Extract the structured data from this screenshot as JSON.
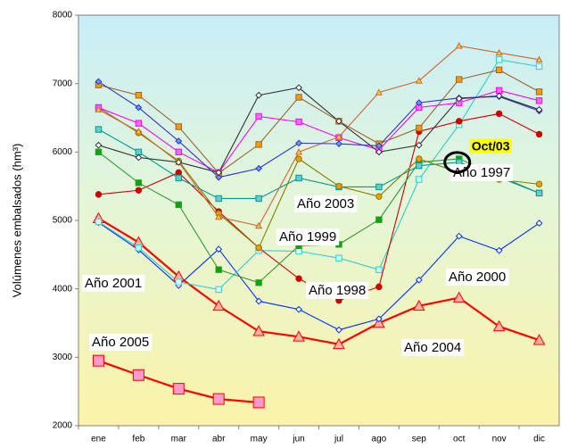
{
  "chart_data": {
    "type": "line",
    "y_label": "Volúmenes embalsados (hm³)",
    "categories": [
      "ene",
      "feb",
      "mar",
      "abr",
      "may",
      "jun",
      "jul",
      "ago",
      "sep",
      "oct",
      "nov",
      "dic"
    ],
    "ylim": [
      2000,
      8000
    ],
    "yticks": [
      2000,
      3000,
      4000,
      5000,
      6000,
      7000,
      8000
    ],
    "highlight": "Oct/03",
    "series": [
      {
        "name": "Año 2005",
        "color": "#ff0000",
        "marker": "square",
        "marker_fill": "#ff99cc",
        "values": [
          2950,
          2740,
          2540,
          2390,
          2340,
          null,
          null,
          null,
          null,
          null,
          null,
          null
        ]
      },
      {
        "name": "Año 2004",
        "color": "#ff0000",
        "marker": "triangle",
        "marker_fill": "#ffb0a0",
        "values": [
          5030,
          4680,
          4180,
          3750,
          3380,
          3300,
          3190,
          3500,
          3750,
          3870,
          3450,
          3250
        ]
      },
      {
        "name": "Año 2000",
        "color": "#0033ff",
        "marker": "diamond",
        "marker_fill": "#ffffff",
        "values": [
          4970,
          4570,
          4050,
          4580,
          3820,
          3700,
          3400,
          3560,
          4130,
          4770,
          4560,
          4960
        ]
      },
      {
        "name": "Año 2001",
        "color": "#33cccc",
        "marker": "square",
        "marker_fill": "#ccffff",
        "values": [
          4980,
          4600,
          4100,
          3990,
          4560,
          4550,
          4450,
          4280,
          5600,
          6400,
          7350,
          7250
        ]
      },
      {
        "name": "Año 1998",
        "color": "#cc0000",
        "marker": "circle",
        "marker_fill": "#cc0000",
        "values": [
          5380,
          5440,
          5700,
          5130,
          4600,
          4150,
          3830,
          4030,
          6300,
          6450,
          6560,
          6260
        ]
      },
      {
        "name": "Año 1999",
        "color": "#339933",
        "marker": "square",
        "marker_fill": "#00aa00",
        "values": [
          6000,
          5550,
          5230,
          4280,
          4090,
          4630,
          4650,
          5010,
          5850,
          5900,
          5650,
          5400
        ]
      },
      {
        "name": "Año 2003",
        "color": "#009999",
        "marker": "square",
        "marker_fill": "#66cccc",
        "values": [
          6330,
          6000,
          5620,
          5320,
          5320,
          5620,
          5490,
          5490,
          5800,
          5850,
          5630,
          5400
        ]
      },
      {
        "name": "Año 1997",
        "color": "#808000",
        "marker": "circle",
        "marker_fill": "#ff9900",
        "values": [
          6650,
          6280,
          5870,
          5100,
          4600,
          5900,
          5500,
          5350,
          5900,
          5700,
          5600,
          5530
        ]
      },
      {
        "color": "#ff00ff",
        "marker": "square",
        "marker_fill": "#ff66ff",
        "values": [
          6650,
          6420,
          6000,
          5700,
          6520,
          6440,
          6210,
          6030,
          6650,
          6720,
          6900,
          6750
        ]
      },
      {
        "color": "#996633",
        "marker": "square",
        "marker_fill": "#ff9900",
        "values": [
          6980,
          6830,
          6370,
          5690,
          6110,
          6800,
          6450,
          6120,
          6350,
          7060,
          7200,
          6880
        ]
      },
      {
        "color": "#cc6633",
        "marker": "triangle",
        "marker_fill": "#ffcc33",
        "values": [
          6620,
          6300,
          5850,
          5050,
          4920,
          6000,
          6220,
          6870,
          7040,
          7550,
          7450,
          7350
        ]
      },
      {
        "color": "#3333cc",
        "marker": "diamond",
        "marker_fill": "#6699ff",
        "values": [
          7030,
          6650,
          6160,
          5630,
          5760,
          6130,
          6120,
          6090,
          6720,
          6790,
          6810,
          6600
        ]
      },
      {
        "color": "#333333",
        "marker": "diamond",
        "marker_fill": "#ffffff",
        "values": [
          6100,
          5920,
          5850,
          5700,
          6830,
          6940,
          6450,
          6000,
          6100,
          6780,
          6820,
          6620
        ]
      }
    ]
  }
}
